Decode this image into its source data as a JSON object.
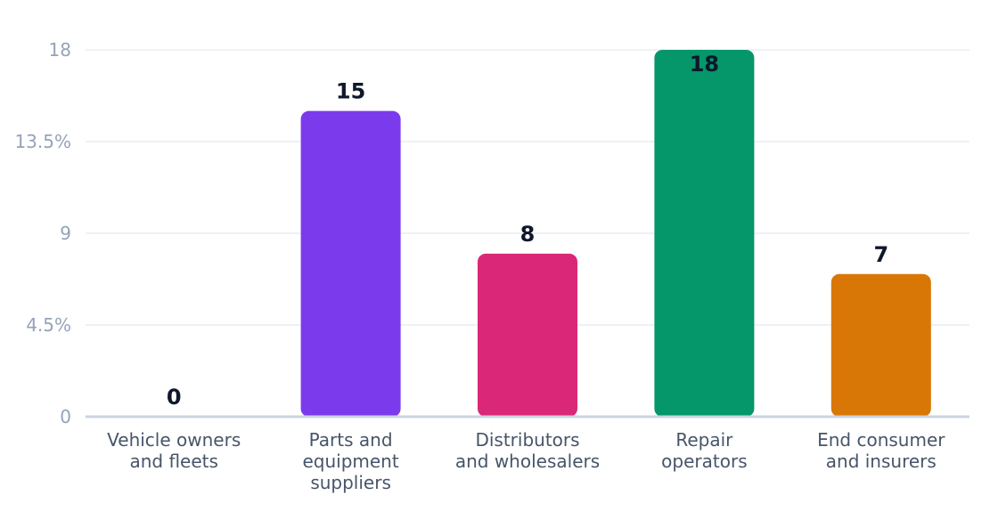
{
  "chart_data": {
    "type": "bar",
    "categories": [
      [
        "Vehicle owners",
        "and fleets"
      ],
      [
        "Parts and",
        "equipment",
        "suppliers"
      ],
      [
        "Distributors",
        "and wholesalers"
      ],
      [
        "Repair",
        "operators"
      ],
      [
        "End consumer",
        "and insurers"
      ]
    ],
    "values": [
      0,
      15,
      8,
      18,
      7
    ],
    "colors": [
      "#7c3aed",
      "#7c3aed",
      "#db2777",
      "#059669",
      "#d97706"
    ],
    "ylim": [
      0,
      18
    ],
    "yticks": [
      {
        "value": 0,
        "label": "0"
      },
      {
        "value": 4.5,
        "label": "4.5%"
      },
      {
        "value": 9,
        "label": "9"
      },
      {
        "value": 13.5,
        "label": "13.5%"
      },
      {
        "value": 18,
        "label": "18"
      }
    ],
    "grid": true,
    "title": "",
    "xlabel": "",
    "ylabel": ""
  }
}
